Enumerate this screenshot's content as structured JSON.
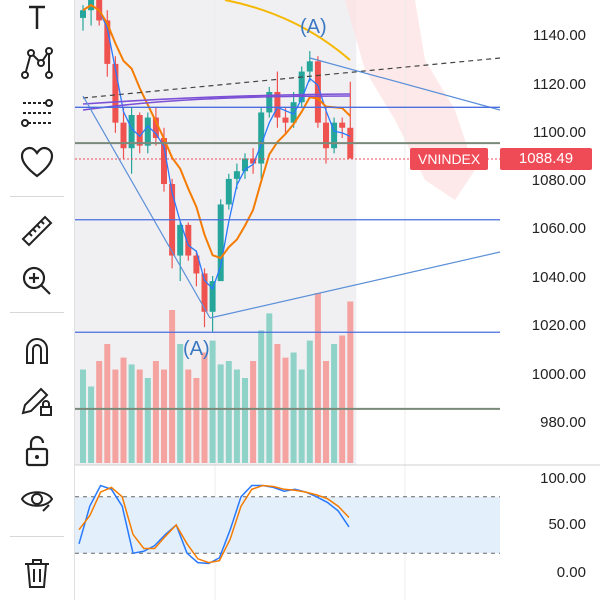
{
  "toolbar": {
    "tools": [
      {
        "name": "text-tool",
        "icon": "text-icon"
      },
      {
        "name": "pattern-tool",
        "icon": "pattern-icon"
      },
      {
        "name": "fib-tool",
        "icon": "fib-retracement-icon"
      },
      {
        "name": "favorites-tool",
        "icon": "heart-icon"
      },
      {
        "name": "measure-tool",
        "icon": "ruler-icon"
      },
      {
        "name": "zoom-tool",
        "icon": "zoom-in-icon"
      },
      {
        "name": "magnet-tool",
        "icon": "magnet-icon"
      },
      {
        "name": "lock-drawing-tool",
        "icon": "pencil-lock-icon"
      },
      {
        "name": "lock-all-tool",
        "icon": "unlock-icon"
      },
      {
        "name": "visibility-tool",
        "icon": "eye-icon"
      },
      {
        "name": "delete-tool",
        "icon": "trash-icon"
      }
    ]
  },
  "symbol": {
    "name": "VNINDEX",
    "last_price": "1088.49"
  },
  "annotations": {
    "wave_top": "(A)",
    "wave_bottom": "(A)"
  },
  "price_axis": [
    "1140.00",
    "1120.00",
    "1100.00",
    "1080.00",
    "1060.00",
    "1040.00",
    "1020.00",
    "1000.00",
    "980.00"
  ],
  "stoch_axis": [
    "100.00",
    "50.00",
    "0.00"
  ],
  "colors": {
    "up": "#26a69a",
    "down": "#ef5350",
    "ma_orange": "#f57c00",
    "ma_blue": "#2979ff",
    "ma_yellow": "#f5b700",
    "ma_purple": "#7b4fd6",
    "last_price": "#ef4b57"
  },
  "chart_data": {
    "type": "candlestick",
    "price_range": [
      970,
      1150
    ],
    "candles": [
      {
        "o": 1143,
        "h": 1148,
        "l": 1138,
        "c": 1146
      },
      {
        "o": 1146,
        "h": 1152,
        "l": 1140,
        "c": 1150
      },
      {
        "o": 1150,
        "h": 1151,
        "l": 1140,
        "c": 1142
      },
      {
        "o": 1142,
        "h": 1146,
        "l": 1120,
        "c": 1125
      },
      {
        "o": 1125,
        "h": 1128,
        "l": 1098,
        "c": 1102
      },
      {
        "o": 1102,
        "h": 1108,
        "l": 1088,
        "c": 1092
      },
      {
        "o": 1092,
        "h": 1108,
        "l": 1082,
        "c": 1105
      },
      {
        "o": 1105,
        "h": 1106,
        "l": 1090,
        "c": 1093
      },
      {
        "o": 1093,
        "h": 1106,
        "l": 1090,
        "c": 1104
      },
      {
        "o": 1104,
        "h": 1108,
        "l": 1093,
        "c": 1096
      },
      {
        "o": 1096,
        "h": 1100,
        "l": 1075,
        "c": 1078
      },
      {
        "o": 1078,
        "h": 1080,
        "l": 1045,
        "c": 1050
      },
      {
        "o": 1050,
        "h": 1063,
        "l": 1040,
        "c": 1062
      },
      {
        "o": 1062,
        "h": 1063,
        "l": 1048,
        "c": 1050
      },
      {
        "o": 1050,
        "h": 1052,
        "l": 1038,
        "c": 1043
      },
      {
        "o": 1043,
        "h": 1045,
        "l": 1022,
        "c": 1028
      },
      {
        "o": 1028,
        "h": 1042,
        "l": 1020,
        "c": 1040
      },
      {
        "o": 1040,
        "h": 1072,
        "l": 1040,
        "c": 1070
      },
      {
        "o": 1070,
        "h": 1082,
        "l": 1068,
        "c": 1080
      },
      {
        "o": 1080,
        "h": 1086,
        "l": 1076,
        "c": 1083
      },
      {
        "o": 1083,
        "h": 1090,
        "l": 1080,
        "c": 1088
      },
      {
        "o": 1088,
        "h": 1092,
        "l": 1082,
        "c": 1086
      },
      {
        "o": 1086,
        "h": 1108,
        "l": 1080,
        "c": 1106
      },
      {
        "o": 1106,
        "h": 1116,
        "l": 1104,
        "c": 1114
      },
      {
        "o": 1114,
        "h": 1122,
        "l": 1100,
        "c": 1104
      },
      {
        "o": 1104,
        "h": 1108,
        "l": 1098,
        "c": 1102
      },
      {
        "o": 1102,
        "h": 1114,
        "l": 1100,
        "c": 1110
      },
      {
        "o": 1110,
        "h": 1124,
        "l": 1108,
        "c": 1122
      },
      {
        "o": 1122,
        "h": 1130,
        "l": 1118,
        "c": 1126
      },
      {
        "o": 1126,
        "h": 1128,
        "l": 1100,
        "c": 1102
      },
      {
        "o": 1102,
        "h": 1108,
        "l": 1086,
        "c": 1092
      },
      {
        "o": 1092,
        "h": 1104,
        "l": 1090,
        "c": 1102
      },
      {
        "o": 1102,
        "h": 1104,
        "l": 1096,
        "c": 1100
      },
      {
        "o": 1100,
        "h": 1118,
        "l": 1088,
        "c": 1088
      }
    ],
    "volume_rel": [
      0.55,
      0.45,
      0.6,
      0.7,
      0.55,
      0.62,
      0.58,
      0.55,
      0.5,
      0.6,
      0.55,
      0.9,
      0.7,
      0.55,
      0.5,
      0.65,
      0.72,
      0.58,
      0.6,
      0.55,
      0.5,
      0.6,
      0.78,
      0.88,
      0.7,
      0.62,
      0.65,
      0.55,
      0.72,
      1.0,
      0.6,
      0.7,
      0.75,
      0.95
    ],
    "stoch_k": [
      30,
      70,
      92,
      88,
      70,
      20,
      22,
      28,
      40,
      50,
      20,
      10,
      9,
      15,
      45,
      80,
      92,
      92,
      90,
      86,
      88,
      85,
      80,
      74,
      65,
      48
    ],
    "stoch_d": [
      45,
      60,
      85,
      90,
      80,
      40,
      25,
      25,
      38,
      50,
      30,
      14,
      10,
      12,
      35,
      70,
      88,
      92,
      91,
      88,
      87,
      85,
      82,
      78,
      70,
      58
    ],
    "stoch_bands": [
      80,
      20
    ],
    "horizontal_levels": [
      1108,
      1094,
      1064,
      1020,
      990
    ]
  }
}
